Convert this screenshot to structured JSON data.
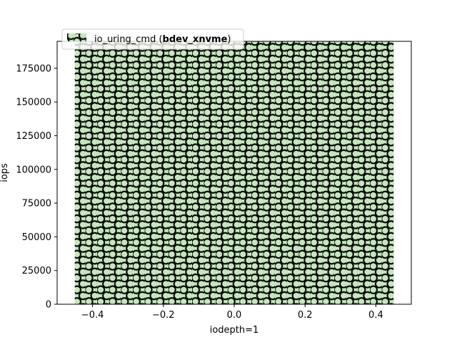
{
  "chart_data": {
    "type": "bar",
    "xlabel": "iodepth=1",
    "ylabel": "iops",
    "xlim": [
      -0.5,
      0.5
    ],
    "ylim": [
      0,
      195000
    ],
    "x_ticks": [
      "−0.4",
      "−0.2",
      "0.0",
      "0.2",
      "0.4"
    ],
    "y_ticks": [
      "0",
      "25000",
      "50000",
      "75000",
      "100000",
      "125000",
      "150000",
      "175000"
    ],
    "legend_position": "top-left",
    "grid": false,
    "series": [
      {
        "name": "io_uring_cmd (bdev_xnvme)",
        "name_prefix": "io_uring_cmd (",
        "name_bold": "bdev_xnvme",
        "name_suffix": ")",
        "x": [
          0
        ],
        "values": [
          195000
        ],
        "bar_width": 0.9,
        "color": "#c6e6bd",
        "hatch": "circles"
      }
    ]
  }
}
